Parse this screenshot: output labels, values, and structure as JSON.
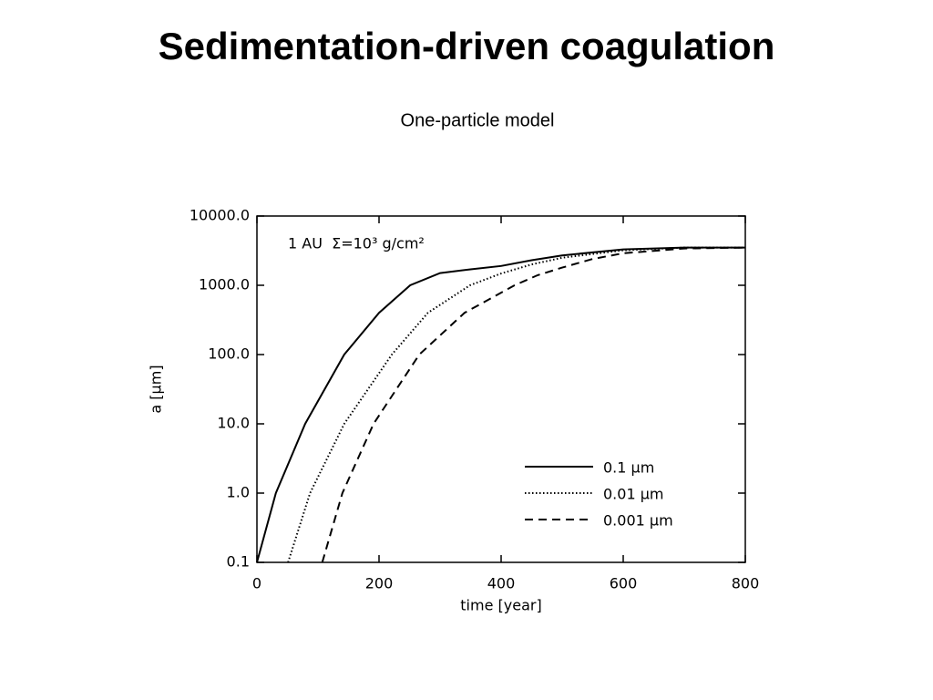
{
  "title": "Sedimentation-driven coagulation",
  "subtitle": "One-particle model",
  "chart_data": {
    "type": "line",
    "annotation": "1 AU  Σ=10³ g/cm²",
    "x_label": "time [year]",
    "y_label": "a [μm]",
    "xlim": [
      0,
      800
    ],
    "xticks": [
      0,
      200,
      400,
      600,
      800
    ],
    "ylim": [
      0.1,
      10000
    ],
    "yticks": [
      0.1,
      {
        "value": 1,
        "label": "1.0"
      },
      {
        "value": 10,
        "label": "10.0"
      },
      {
        "value": 100,
        "label": "100.0"
      },
      {
        "value": 1000,
        "label": "1000.0"
      },
      {
        "value": 10000,
        "label": "10000.0"
      }
    ],
    "log_y": true,
    "legend": "lower right",
    "series": [
      {
        "name": "0.1 μm",
        "color": "#000000",
        "linestyle": "solid",
        "x": [
          0,
          31,
          79,
          143,
          200,
          251,
          300,
          350,
          400,
          450,
          500,
          600,
          700,
          800
        ],
        "values": [
          0.1,
          1,
          10,
          100,
          400,
          1000,
          1500,
          1700,
          1900,
          2300,
          2700,
          3300,
          3500,
          3500
        ]
      },
      {
        "name": "0.01 μm",
        "color": "#000000",
        "linestyle": "dotted",
        "x": [
          51,
          87,
          143,
          221,
          280,
          349,
          400,
          450,
          500,
          600,
          700,
          800
        ],
        "values": [
          0.1,
          1,
          10,
          100,
          400,
          1000,
          1480,
          2000,
          2500,
          3200,
          3500,
          3500
        ]
      },
      {
        "name": "0.001 μm",
        "color": "#000000",
        "linestyle": "dashed",
        "x": [
          107,
          140,
          191,
          266,
          340,
          422,
          460,
          500,
          550,
          600,
          700,
          800
        ],
        "values": [
          0.1,
          1,
          10,
          100,
          400,
          1000,
          1400,
          1800,
          2400,
          2900,
          3400,
          3500
        ]
      }
    ]
  }
}
